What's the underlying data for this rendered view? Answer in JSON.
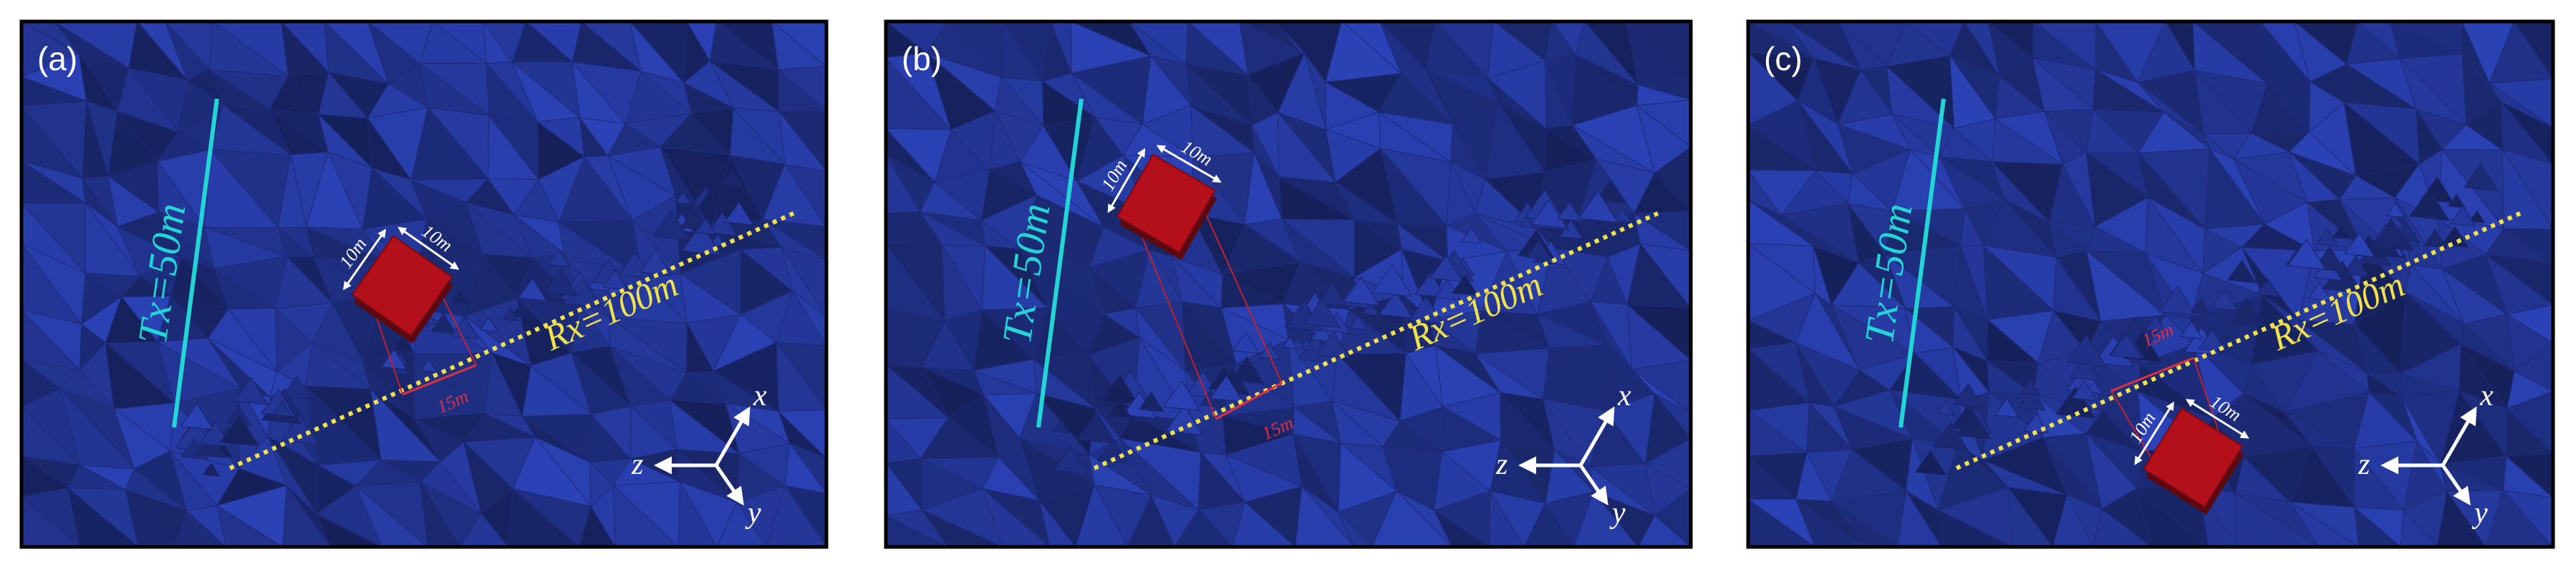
{
  "panels": [
    {
      "label": "(a)",
      "tx": "Tx=50m",
      "rx": "Rx=100m",
      "side_a": "10m",
      "side_b": "10m",
      "offset": "15m",
      "axis_x": "x",
      "axis_y": "y",
      "axis_z": "z"
    },
    {
      "label": "(b)",
      "tx": "Tx=50m",
      "rx": "Rx=100m",
      "side_a": "10m",
      "side_b": "10m",
      "offset": "15m",
      "axis_x": "x",
      "axis_y": "y",
      "axis_z": "z"
    },
    {
      "label": "(c)",
      "tx": "Tx=50m",
      "rx": "Rx=100m",
      "side_a": "10m",
      "side_b": "10m",
      "offset": "15m",
      "axis_x": "x",
      "axis_y": "y",
      "axis_z": "z"
    }
  ]
}
